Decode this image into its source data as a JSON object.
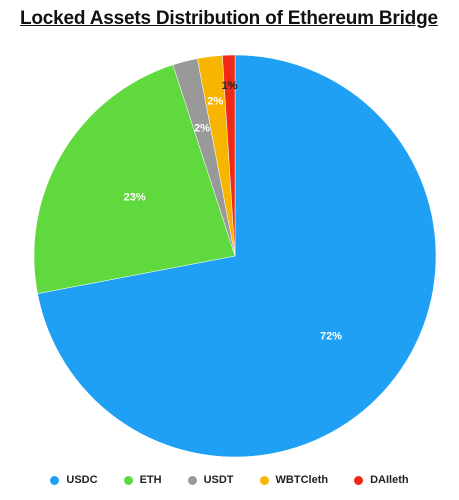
{
  "chart_data": {
    "type": "pie",
    "title": "Locked Assets Distribution of Ethereum Bridge",
    "slices": [
      {
        "name": "USDC",
        "value": 72,
        "label": "72%",
        "color": "#1fa0f5"
      },
      {
        "name": "ETH",
        "value": 23,
        "label": "23%",
        "color": "#5fd93d"
      },
      {
        "name": "USDT",
        "value": 2,
        "label": "2%",
        "color": "#999999"
      },
      {
        "name": "WBTCleth",
        "value": 2,
        "label": "2%",
        "color": "#f7b500"
      },
      {
        "name": "DAIleth",
        "value": 1,
        "label": "1%",
        "color": "#ee2a16"
      }
    ],
    "legend_position": "bottom",
    "start_angle_deg": 0,
    "direction": "clockwise"
  }
}
